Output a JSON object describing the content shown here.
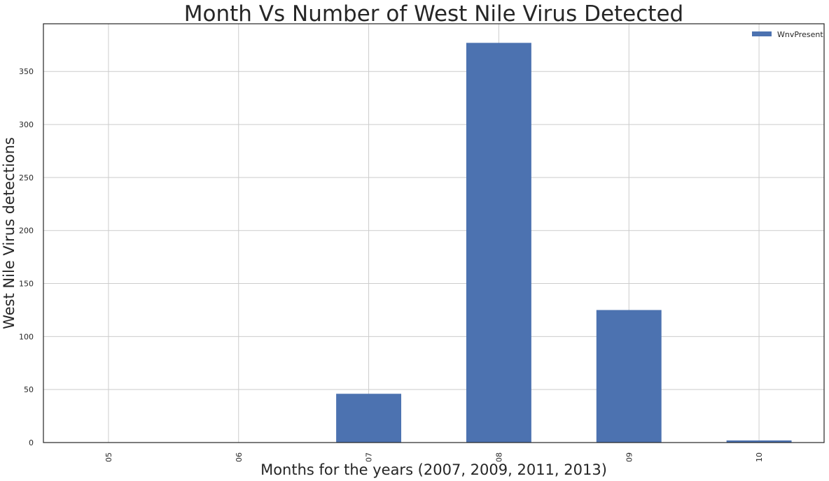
{
  "chart_data": {
    "type": "bar",
    "title": "Month Vs Number of West Nile Virus Detected",
    "xlabel": "Months for the years (2007, 2009, 2011, 2013)",
    "ylabel": "West Nile Virus detections",
    "categories": [
      "05",
      "06",
      "07",
      "08",
      "09",
      "10"
    ],
    "series": [
      {
        "name": "WnvPresent",
        "values": [
          0,
          0,
          46,
          377,
          125,
          2
        ]
      }
    ],
    "ylim": [
      0,
      395
    ],
    "yticks": [
      0,
      50,
      100,
      150,
      200,
      250,
      300,
      350
    ],
    "grid": true,
    "legend": "top-right",
    "colors": {
      "bar": "#4c72b0",
      "grid": "#cccccc",
      "axis": "#262626"
    }
  }
}
